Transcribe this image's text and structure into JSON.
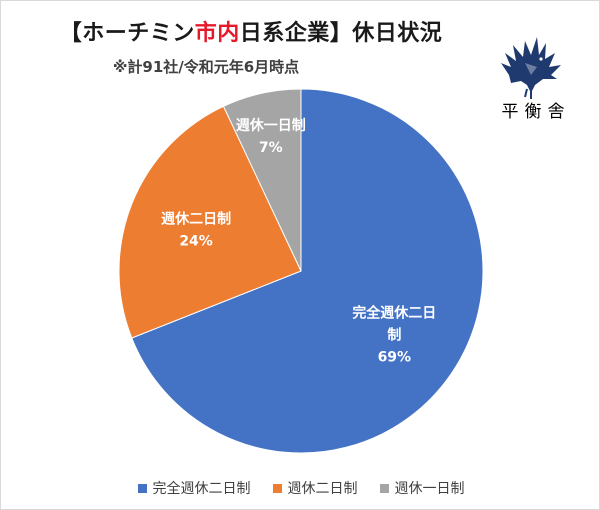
{
  "title": {
    "prefix": "【ホーチミン",
    "highlight": "市内",
    "suffix": "日系企業】休日状況"
  },
  "subtitle": "※計91社/令和元年6月時点",
  "logo": {
    "text": "平衡舎",
    "icon": "eagle-icon"
  },
  "colors": {
    "series1": "#4472c4",
    "series2": "#ed7d31",
    "series3": "#a5a5a5",
    "title_highlight": "#e6192b"
  },
  "chart_data": {
    "type": "pie",
    "title": "【ホーチミン市内日系企業】休日状況",
    "subtitle": "※計91社/令和元年6月時点",
    "categories": [
      "完全週休二日制",
      "週休二日制",
      "週休一日制"
    ],
    "values": [
      69,
      24,
      7
    ],
    "unit": "%",
    "start_angle_deg": 0,
    "direction": "clockwise",
    "legend_position": "bottom",
    "data_labels": [
      {
        "lines": [
          "完全週休二日",
          "制"
        ],
        "value": "69%"
      },
      {
        "lines": [
          "週休二日制"
        ],
        "value": "24%"
      },
      {
        "lines": [
          "週休一日制"
        ],
        "value": "7%"
      }
    ]
  },
  "legend": {
    "items": [
      {
        "label": "完全週休二日制",
        "color": "#4472c4"
      },
      {
        "label": "週休二日制",
        "color": "#ed7d31"
      },
      {
        "label": "週休一日制",
        "color": "#a5a5a5"
      }
    ]
  }
}
